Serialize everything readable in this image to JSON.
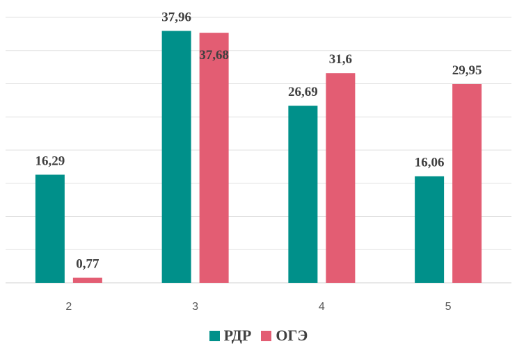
{
  "chart_data": {
    "type": "bar",
    "title": "",
    "xlabel": "",
    "ylabel": "",
    "categories": [
      "2",
      "3",
      "4",
      "5"
    ],
    "series": [
      {
        "name": "РДР",
        "values": [
          16.29,
          37.96,
          26.69,
          16.06
        ],
        "labels": [
          "16,29",
          "37,96",
          "26,69",
          "16,06"
        ],
        "color": "#00908A"
      },
      {
        "name": "ОГЭ",
        "values": [
          0.77,
          37.68,
          31.6,
          29.95
        ],
        "labels": [
          "0,77",
          "37,68",
          "31,6",
          "29,95"
        ],
        "color": "#E35D73"
      }
    ],
    "ylim": [
      0,
      40
    ],
    "grid": true,
    "legend_position": "bottom"
  }
}
